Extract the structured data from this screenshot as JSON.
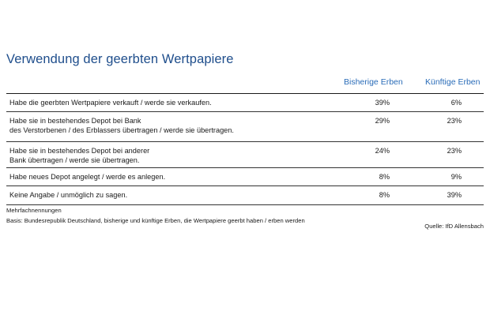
{
  "chart_data": {
    "type": "table",
    "title": "Verwendung der geerbten Wertpapiere",
    "columns": [
      "Bisherige Erben",
      "Künftige Erben"
    ],
    "rows": [
      {
        "label": "Habe die geerbten Wertpapiere verkauft / werde sie verkaufen.",
        "values": [
          "39%",
          "6%"
        ]
      },
      {
        "label": "Habe sie in bestehendes Depot bei Bank\ndes Verstorbenen / des Erblassers übertragen / werde sie übertragen.",
        "values": [
          "29%",
          "23%"
        ]
      },
      {
        "label": "Habe sie in bestehendes Depot bei anderer\nBank übertragen / werde sie übertragen.",
        "values": [
          "24%",
          "23%"
        ]
      },
      {
        "label": "Habe neues Depot angelegt / werde es anlegen.",
        "values": [
          "8%",
          "9%"
        ]
      },
      {
        "label": "Keine Angabe / unmöglich zu sagen.",
        "values": [
          "8%",
          "39%"
        ]
      }
    ],
    "note1": "Mehrfachnennungen",
    "note2": "Basis: Bundesrepublik Deutschland, bisherige und künftige Erben, die Wertpapiere geerbt haben / erben werden",
    "source": "Quelle: IfD Allensbach"
  }
}
